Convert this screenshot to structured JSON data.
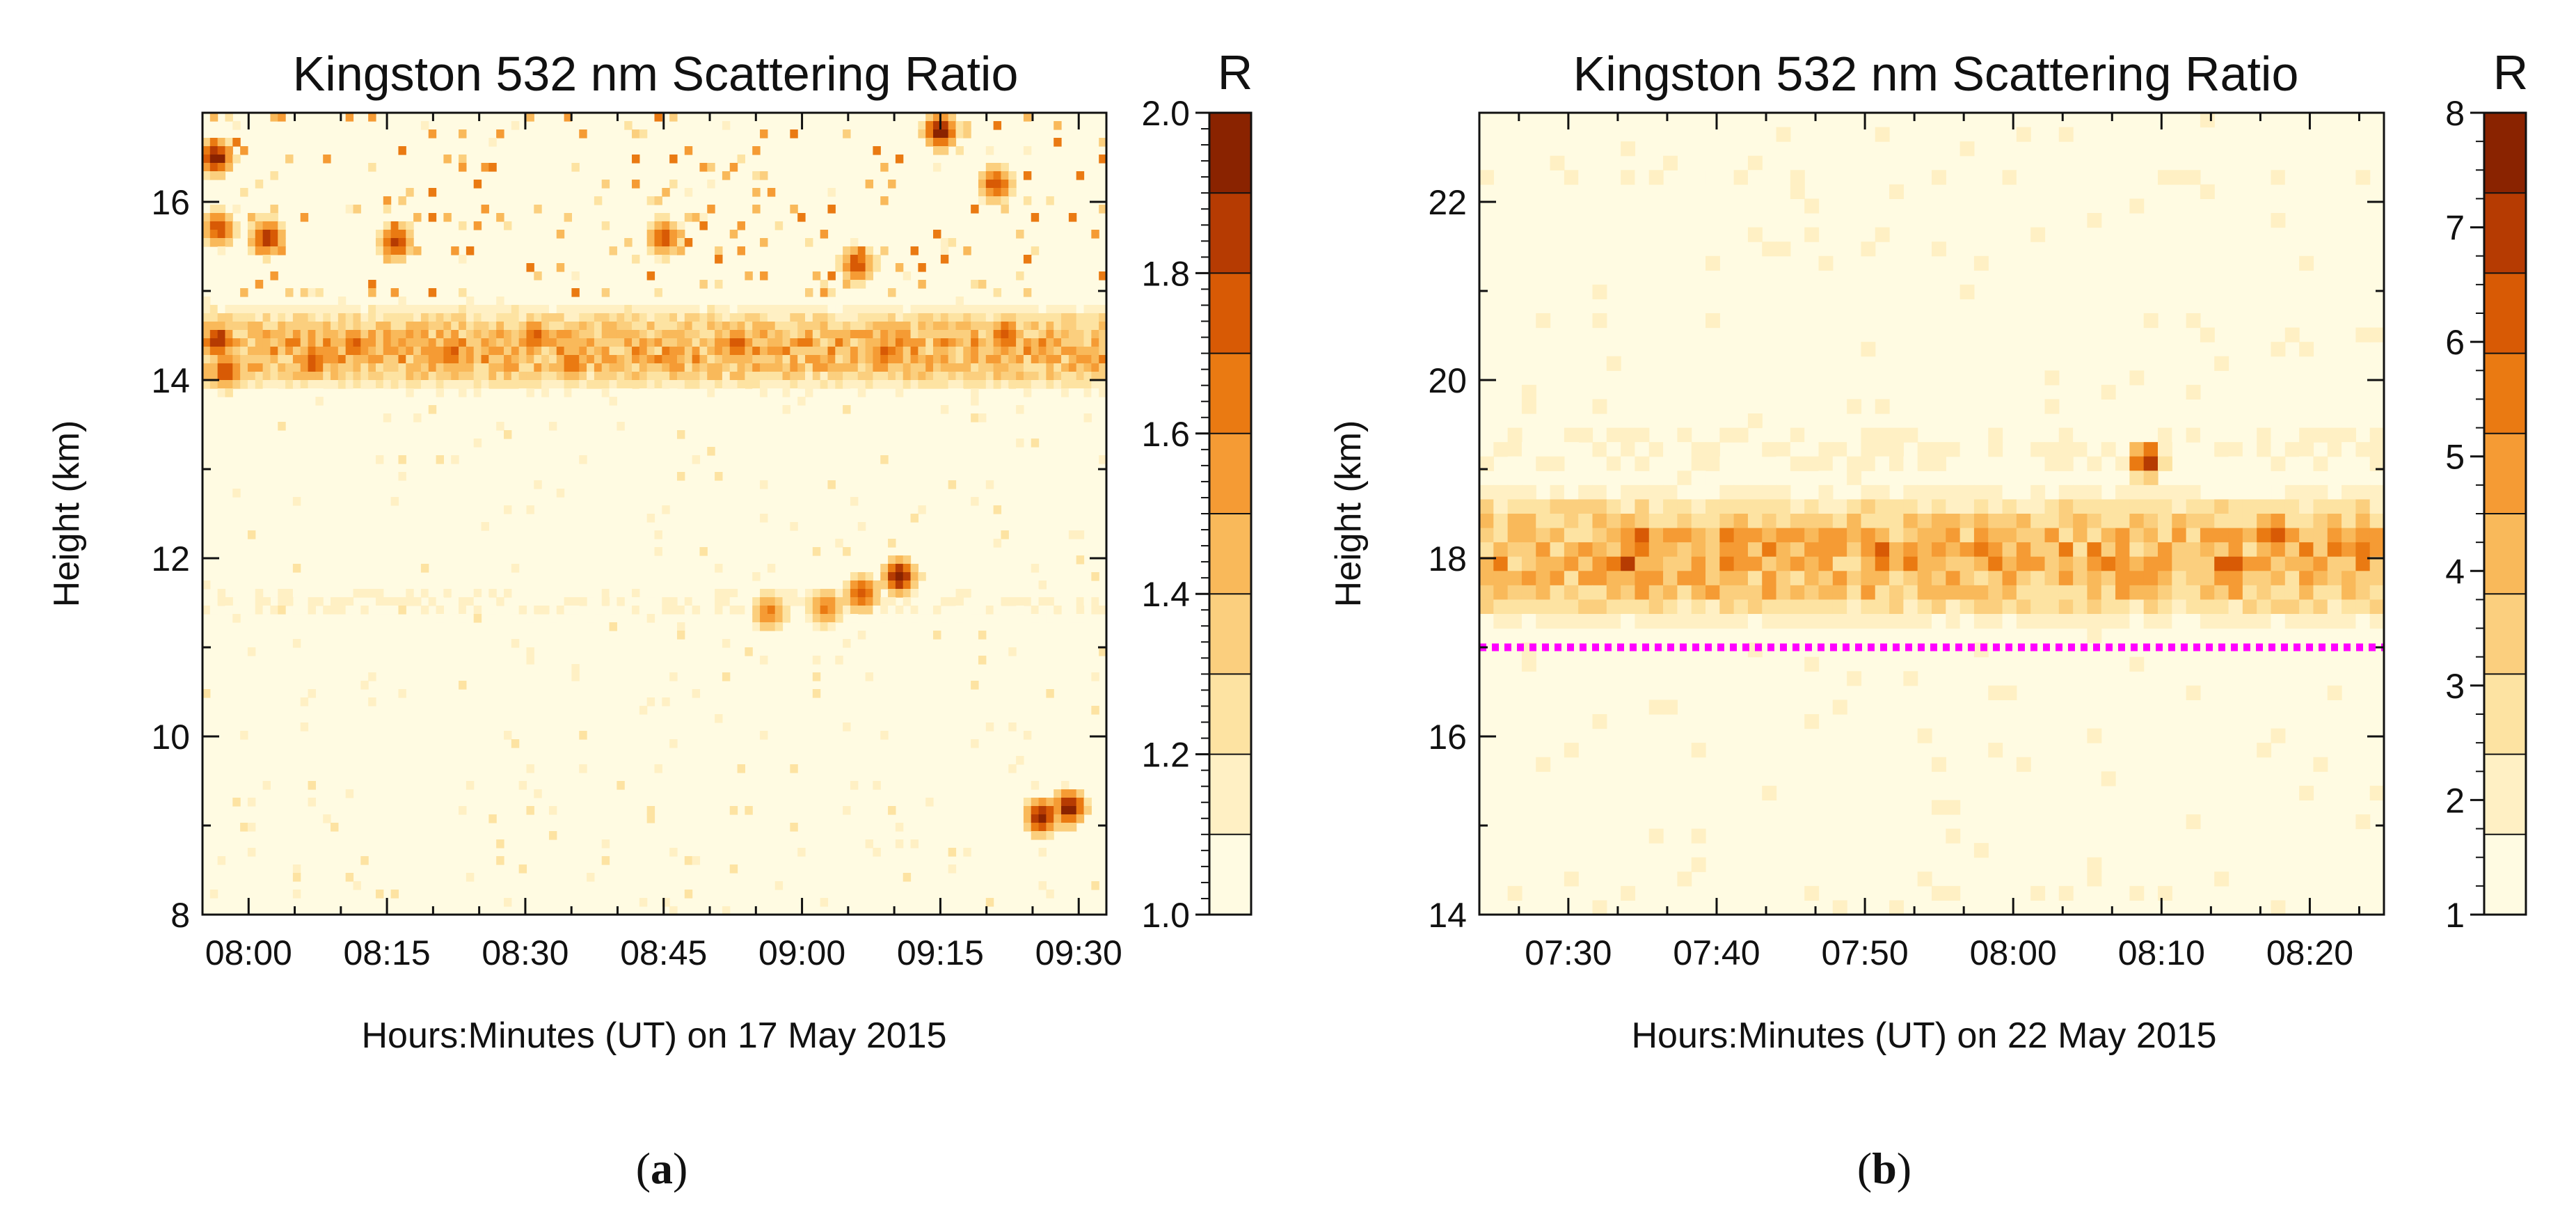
{
  "palette": [
    "#fffbe2",
    "#fff0c4",
    "#fde3a2",
    "#fbcf7e",
    "#f9b95a",
    "#f59b34",
    "#ea7a12",
    "#d85a05",
    "#b63b02",
    "#8a2300"
  ],
  "marker_color": "#ff00ff",
  "chart_data": [
    {
      "type": "heatmap",
      "title": "Kingston 532 nm Scattering Ratio",
      "xlabel": "Hours:Minutes (UT) on 17 May 2015",
      "ylabel": "Height (km)",
      "colorbar_label": "R",
      "caption_letter": "a",
      "x_range_min": [
        475,
        573
      ],
      "y_range_km": [
        8,
        17
      ],
      "x_ticks_min": [
        480,
        495,
        510,
        525,
        540,
        555,
        570
      ],
      "x_tick_labels": [
        "08:00",
        "08:15",
        "08:30",
        "08:45",
        "09:00",
        "09:15",
        "09:30"
      ],
      "y_ticks_km": [
        8,
        10,
        12,
        14,
        16
      ],
      "y_tick_labels": [
        "8",
        "10",
        "12",
        "14",
        "16"
      ],
      "colorbar_range": [
        1.0,
        2.0
      ],
      "colorbar_ticks": [
        1.0,
        1.2,
        1.4,
        1.6,
        1.8,
        2.0
      ],
      "colorbar_tick_labels": [
        "1.0",
        "1.2",
        "1.4",
        "1.6",
        "1.8",
        "2.0"
      ],
      "bands": [
        {
          "y_km": 14.35,
          "thickness_km": 0.9,
          "level": 1.5,
          "note": "aerosol layer near 14 km"
        },
        {
          "y_km": 11.5,
          "thickness_km": 0.5,
          "level": 1.1,
          "note": "weak layer near 11.5 km"
        }
      ],
      "features": [
        {
          "t_min": 550.5,
          "y_km": 11.8,
          "R": 2.0
        },
        {
          "t_min": 546.5,
          "y_km": 11.6,
          "R": 1.8
        },
        {
          "t_min": 542.5,
          "y_km": 11.45,
          "R": 1.65
        },
        {
          "t_min": 536.5,
          "y_km": 11.4,
          "R": 1.65
        },
        {
          "t_min": 566.0,
          "y_km": 9.1,
          "R": 2.0
        },
        {
          "t_min": 569.0,
          "y_km": 9.2,
          "R": 2.0
        },
        {
          "t_min": 476.5,
          "y_km": 16.5,
          "R": 2.0
        },
        {
          "t_min": 476.8,
          "y_km": 14.45,
          "R": 1.9
        },
        {
          "t_min": 476.7,
          "y_km": 15.7,
          "R": 1.8
        },
        {
          "t_min": 477.5,
          "y_km": 14.1,
          "R": 1.8
        },
        {
          "t_min": 482.0,
          "y_km": 15.6,
          "R": 1.9
        },
        {
          "t_min": 487.0,
          "y_km": 14.2,
          "R": 1.8
        },
        {
          "t_min": 491.5,
          "y_km": 14.4,
          "R": 1.75
        },
        {
          "t_min": 496.0,
          "y_km": 15.55,
          "R": 1.85
        },
        {
          "t_min": 502.0,
          "y_km": 14.3,
          "R": 1.75
        },
        {
          "t_min": 511.0,
          "y_km": 14.5,
          "R": 1.75
        },
        {
          "t_min": 515.0,
          "y_km": 14.2,
          "R": 1.75
        },
        {
          "t_min": 525.0,
          "y_km": 15.6,
          "R": 1.8
        },
        {
          "t_min": 533.0,
          "y_km": 14.4,
          "R": 1.8
        },
        {
          "t_min": 546.0,
          "y_km": 15.3,
          "R": 1.8
        },
        {
          "t_min": 549.0,
          "y_km": 14.3,
          "R": 1.75
        },
        {
          "t_min": 555.0,
          "y_km": 16.8,
          "R": 2.0
        },
        {
          "t_min": 562.0,
          "y_km": 14.5,
          "R": 1.8
        },
        {
          "t_min": 561.0,
          "y_km": 16.2,
          "R": 1.8
        }
      ]
    },
    {
      "type": "heatmap",
      "title": "Kingston 532 nm Scattering Ratio",
      "xlabel": "Hours:Minutes (UT) on 22 May 2015",
      "ylabel": "Height (km)",
      "colorbar_label": "R",
      "caption_letter": "b",
      "x_range_min": [
        444,
        505
      ],
      "y_range_km": [
        14,
        23
      ],
      "x_ticks_min": [
        450,
        460,
        470,
        480,
        490,
        500
      ],
      "x_tick_labels": [
        "07:30",
        "07:40",
        "07:50",
        "08:00",
        "08:10",
        "08:20"
      ],
      "y_ticks_km": [
        14,
        16,
        18,
        20,
        22
      ],
      "y_tick_labels": [
        "14",
        "16",
        "18",
        "20",
        "22"
      ],
      "colorbar_range": [
        1,
        8
      ],
      "colorbar_ticks": [
        1,
        2,
        3,
        4,
        5,
        6,
        7,
        8
      ],
      "colorbar_tick_labels": [
        "1",
        "2",
        "3",
        "4",
        "5",
        "6",
        "7",
        "8"
      ],
      "tropopause_km": 17.0,
      "bands": [
        {
          "y_km": 18.0,
          "thickness_km": 1.4,
          "level": 4.5,
          "note": "aerosol layer near 18 km"
        },
        {
          "y_km": 19.2,
          "thickness_km": 0.8,
          "level": 1.8,
          "note": "weak upper extension"
        },
        {
          "y_km": 22.3,
          "thickness_km": 0.3,
          "level": 1.6,
          "note": "faint layer near 22 km"
        }
      ],
      "features": [
        {
          "t_min": 489.0,
          "y_km": 19.1,
          "R": 7.5
        },
        {
          "t_min": 454.0,
          "y_km": 17.95,
          "R": 7.0
        },
        {
          "t_min": 455.0,
          "y_km": 18.2,
          "R": 6.5
        },
        {
          "t_min": 461.0,
          "y_km": 18.2,
          "R": 6.5
        },
        {
          "t_min": 467.0,
          "y_km": 18.0,
          "R": 6.0
        },
        {
          "t_min": 471.0,
          "y_km": 18.05,
          "R": 7.0
        },
        {
          "t_min": 479.0,
          "y_km": 18.0,
          "R": 6.0
        },
        {
          "t_min": 486.0,
          "y_km": 17.95,
          "R": 6.0
        },
        {
          "t_min": 494.5,
          "y_km": 17.9,
          "R": 7.5
        },
        {
          "t_min": 497.5,
          "y_km": 18.3,
          "R": 7.0
        },
        {
          "t_min": 502.0,
          "y_km": 18.15,
          "R": 6.0
        }
      ]
    }
  ]
}
